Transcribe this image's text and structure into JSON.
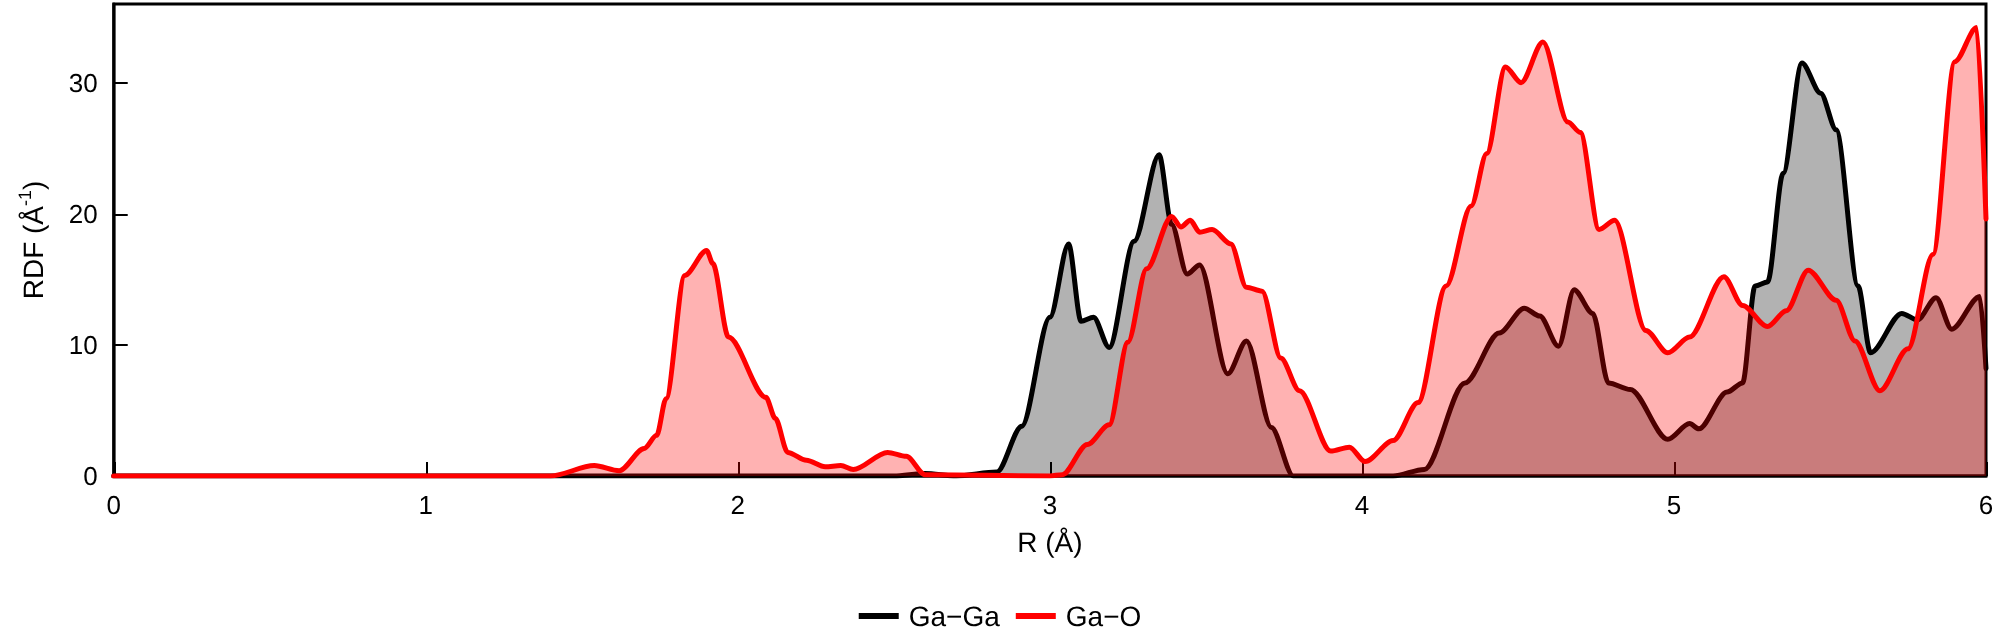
{
  "chart_data": {
    "type": "area",
    "xlabel": "R (Å)",
    "ylabel": "RDF (Å$^{-1}$)",
    "xlim": [
      0,
      6
    ],
    "xticks": [
      0,
      1,
      2,
      3,
      4,
      5,
      6
    ],
    "ylim": [
      0,
      36
    ],
    "yticks": [
      0,
      10,
      20,
      30
    ],
    "grid": false,
    "legend": "bottom",
    "marker": "none",
    "line_style": "solid",
    "series": [
      {
        "name": "Ga−Ga",
        "color": "#000000",
        "x": [
          0,
          2.5,
          2.6,
          2.7,
          2.83,
          2.91,
          3.0,
          3.06,
          3.1,
          3.14,
          3.19,
          3.27,
          3.35,
          3.39,
          3.44,
          3.48,
          3.57,
          3.63,
          3.71,
          3.78,
          4.1,
          4.2,
          4.33,
          4.44,
          4.52,
          4.57,
          4.63,
          4.68,
          4.74,
          4.79,
          4.86,
          4.98,
          5.05,
          5.08,
          5.17,
          5.22,
          5.26,
          5.3,
          5.35,
          5.41,
          5.47,
          5.52,
          5.59,
          5.63,
          5.73,
          5.78,
          5.84,
          5.89,
          5.98,
          6.0
        ],
        "values": [
          0,
          0,
          0.2,
          0,
          0.3,
          3.8,
          12.1,
          17.7,
          11.8,
          12.1,
          9.8,
          17.9,
          24.5,
          19.2,
          15.4,
          16.1,
          7.8,
          10.3,
          3.7,
          0,
          0,
          0.5,
          7.1,
          10.9,
          12.8,
          12.2,
          9.9,
          14.2,
          12.4,
          7.1,
          6.6,
          2.8,
          4.0,
          3.6,
          6.4,
          7.1,
          14.5,
          14.8,
          23.1,
          31.5,
          29.2,
          26.4,
          14.5,
          9.4,
          12.4,
          11.9,
          13.6,
          11.2,
          13.7,
          8.2
        ]
      },
      {
        "name": "Ga−O",
        "color": "#ff0000",
        "x": [
          0,
          1.4,
          1.54,
          1.62,
          1.7,
          1.74,
          1.77,
          1.83,
          1.9,
          1.92,
          1.97,
          2.09,
          2.12,
          2.16,
          2.22,
          2.28,
          2.33,
          2.37,
          2.48,
          2.54,
          2.6,
          3.0,
          3.04,
          3.12,
          3.19,
          3.25,
          3.31,
          3.39,
          3.42,
          3.45,
          3.48,
          3.52,
          3.58,
          3.63,
          3.68,
          3.74,
          3.8,
          3.9,
          3.96,
          4.01,
          4.1,
          4.18,
          4.27,
          4.35,
          4.4,
          4.46,
          4.51,
          4.58,
          4.66,
          4.7,
          4.76,
          4.81,
          4.91,
          4.98,
          5.05,
          5.16,
          5.22,
          5.3,
          5.36,
          5.43,
          5.52,
          5.58,
          5.66,
          5.75,
          5.83,
          5.9,
          5.97,
          6.0
        ],
        "values": [
          0,
          0,
          0.8,
          0.4,
          2.1,
          3.1,
          5.9,
          15.3,
          17.2,
          16.2,
          10.6,
          6.0,
          4.4,
          1.8,
          1.2,
          0.7,
          0.8,
          0.5,
          1.8,
          1.5,
          0.1,
          0,
          0.1,
          2.4,
          3.9,
          10.2,
          15.8,
          19.8,
          19.0,
          19.5,
          18.6,
          18.8,
          17.7,
          14.4,
          14.1,
          9.0,
          6.5,
          1.9,
          2.2,
          1.1,
          2.7,
          5.6,
          14.5,
          20.6,
          24.6,
          31.2,
          30.0,
          33.1,
          27.0,
          26.2,
          18.8,
          19.5,
          11.1,
          9.4,
          10.6,
          15.2,
          13.0,
          11.4,
          12.6,
          15.7,
          13.4,
          10.3,
          6.5,
          9.7,
          16.9,
          31.6,
          34.2,
          19.6
        ]
      }
    ]
  }
}
